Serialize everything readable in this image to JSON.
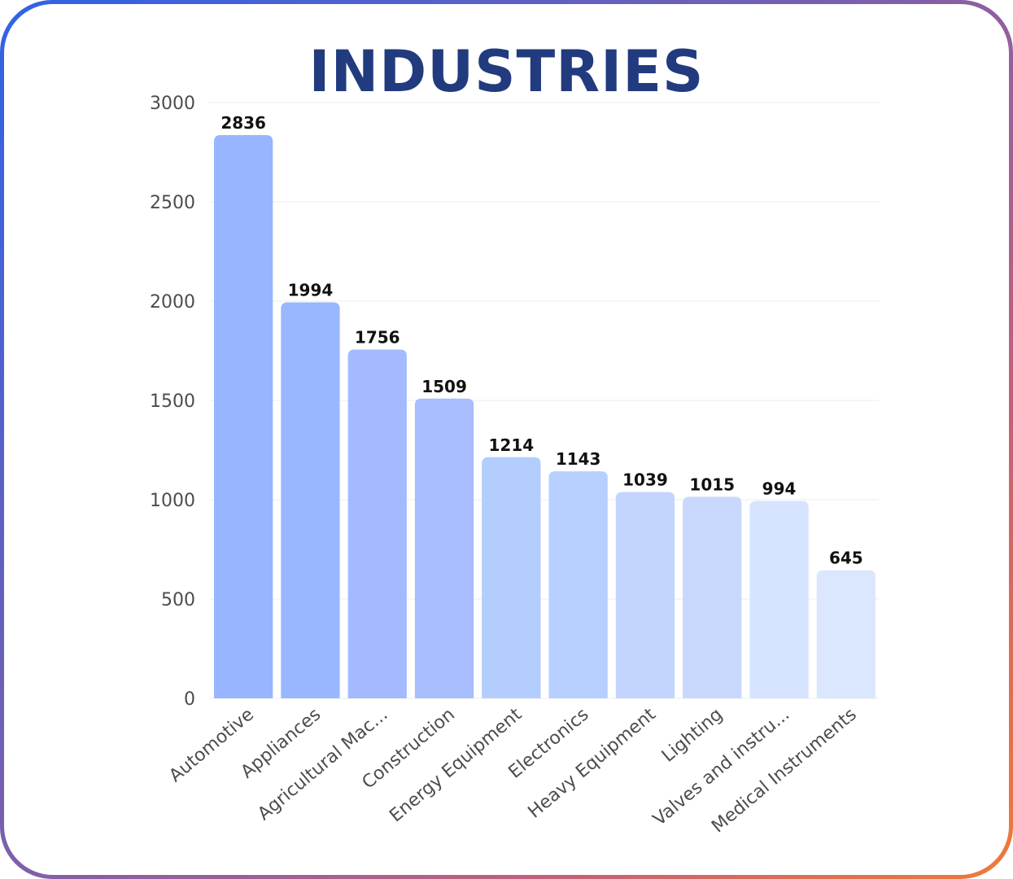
{
  "chart_data": {
    "type": "bar",
    "title": "INDUSTRIES",
    "xlabel": "",
    "ylabel": "",
    "categories": [
      "Automotive",
      "Appliances",
      "Agricultural Mac...",
      "Construction",
      "Energy Equipment",
      "Electronics",
      "Heavy Equipment",
      "Lighting",
      "Valves and instru...",
      "Medical Instruments"
    ],
    "values": [
      2836,
      1994,
      1756,
      1509,
      1214,
      1143,
      1039,
      1015,
      994,
      645
    ],
    "ylim": [
      0,
      3000
    ],
    "yticks": [
      0,
      500,
      1000,
      1500,
      2000,
      2500,
      3000
    ],
    "grid": true,
    "legend": "none",
    "bar_colors": [
      "#98b6ff",
      "#99b7ff",
      "#a3baff",
      "#a8bdfd",
      "#b3cdff",
      "#b6cfff",
      "#c3d5fe",
      "#c8d8fd",
      "#d6e4ff",
      "#dbe7fe"
    ],
    "gridline_color": "#ececec",
    "title_color": "#213b7e"
  }
}
